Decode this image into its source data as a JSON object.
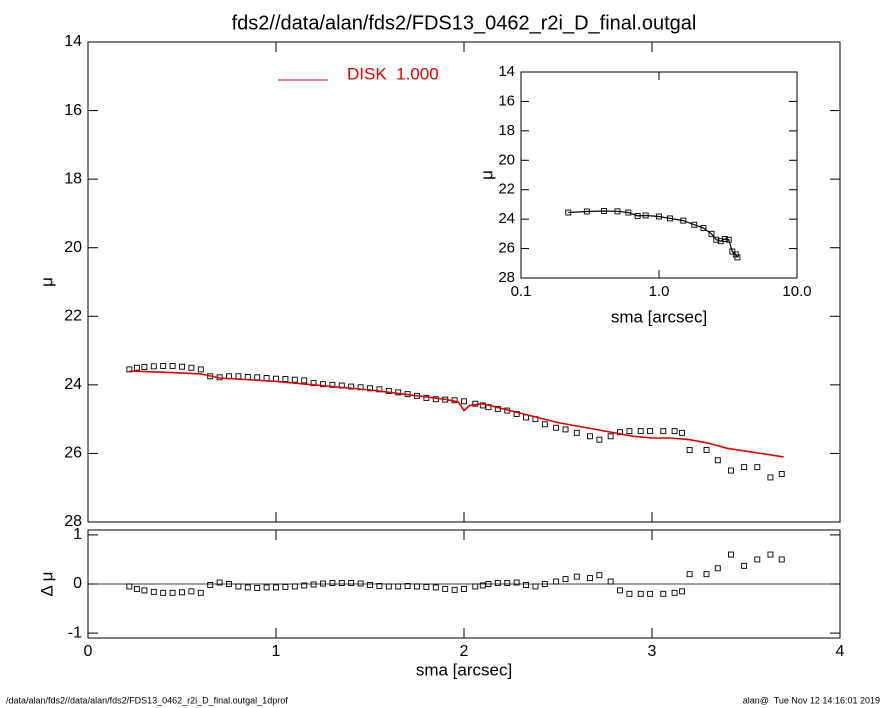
{
  "chart_data": [
    {
      "type": "scatter-line",
      "title": "fds2//data/alan/fds2/FDS13_0462_r2i_D_final.outgal",
      "ylabel": "μ",
      "xlim": [
        0,
        4
      ],
      "xticks": [
        0,
        1,
        2,
        3,
        4
      ],
      "ylim": [
        28,
        14
      ],
      "yticks": [
        14,
        16,
        18,
        20,
        22,
        24,
        26,
        28
      ],
      "series": [
        {
          "kind": "points",
          "color": "#000000",
          "x": [
            0.22,
            0.26,
            0.3,
            0.35,
            0.4,
            0.45,
            0.5,
            0.55,
            0.6,
            0.65,
            0.7,
            0.75,
            0.8,
            0.85,
            0.9,
            0.95,
            1.0,
            1.05,
            1.1,
            1.15,
            1.2,
            1.25,
            1.3,
            1.35,
            1.4,
            1.45,
            1.5,
            1.55,
            1.6,
            1.65,
            1.7,
            1.75,
            1.8,
            1.85,
            1.9,
            1.95,
            2.0,
            2.06,
            2.1,
            2.13,
            2.18,
            2.23,
            2.28,
            2.33,
            2.38,
            2.43,
            2.49,
            2.54,
            2.6,
            2.67,
            2.72,
            2.78,
            2.83,
            2.88,
            2.94,
            2.99,
            3.06,
            3.12,
            3.16,
            3.2,
            3.29,
            3.35,
            3.42,
            3.49,
            3.56,
            3.63,
            3.69
          ],
          "values": [
            23.55,
            23.5,
            23.48,
            23.46,
            23.45,
            23.45,
            23.47,
            23.5,
            23.55,
            23.75,
            23.78,
            23.75,
            23.75,
            23.77,
            23.78,
            23.8,
            23.82,
            23.83,
            23.85,
            23.87,
            23.95,
            23.98,
            24.0,
            24.02,
            24.05,
            24.07,
            24.1,
            24.13,
            24.18,
            24.22,
            24.27,
            24.32,
            24.38,
            24.42,
            24.43,
            24.45,
            24.48,
            24.55,
            24.6,
            24.65,
            24.7,
            24.75,
            24.85,
            24.95,
            25.0,
            25.15,
            25.25,
            25.3,
            25.4,
            25.5,
            25.6,
            25.5,
            25.38,
            25.35,
            25.35,
            25.35,
            25.35,
            25.35,
            25.4,
            25.9,
            25.9,
            26.2,
            26.5,
            26.4,
            26.4,
            26.7,
            26.6
          ]
        },
        {
          "kind": "line",
          "name": "DISK  1.000",
          "color": "#e00000",
          "x": [
            0.22,
            0.4,
            0.6,
            0.7,
            1.0,
            1.5,
            1.9,
            1.97,
            2.0,
            2.03,
            2.1,
            2.5,
            2.7,
            2.9,
            3.0,
            3.1,
            3.2,
            3.3,
            3.4,
            3.7
          ],
          "values": [
            23.6,
            23.63,
            23.68,
            23.8,
            23.9,
            24.15,
            24.42,
            24.5,
            24.75,
            24.6,
            24.55,
            25.1,
            25.3,
            25.5,
            25.55,
            25.55,
            25.6,
            25.7,
            25.85,
            26.1
          ]
        }
      ]
    },
    {
      "type": "scatter-line",
      "xlabel": "sma [arcsec]",
      "ylabel": "Δ μ",
      "xlim": [
        0,
        4
      ],
      "xticks": [
        0,
        1,
        2,
        3,
        4
      ],
      "ylim": [
        -1.1,
        1.1
      ],
      "yticks": [
        -1,
        0,
        1
      ],
      "reference_line": 0,
      "series": [
        {
          "kind": "points",
          "color": "#000000",
          "x": [
            0.22,
            0.26,
            0.3,
            0.35,
            0.4,
            0.45,
            0.5,
            0.55,
            0.6,
            0.65,
            0.7,
            0.75,
            0.8,
            0.85,
            0.9,
            0.95,
            1.0,
            1.05,
            1.1,
            1.15,
            1.2,
            1.25,
            1.3,
            1.35,
            1.4,
            1.45,
            1.5,
            1.55,
            1.6,
            1.65,
            1.7,
            1.75,
            1.8,
            1.85,
            1.9,
            1.95,
            2.0,
            2.06,
            2.1,
            2.13,
            2.18,
            2.23,
            2.28,
            2.33,
            2.38,
            2.43,
            2.49,
            2.54,
            2.6,
            2.67,
            2.72,
            2.78,
            2.83,
            2.88,
            2.94,
            2.99,
            3.06,
            3.12,
            3.16,
            3.2,
            3.29,
            3.35,
            3.42,
            3.49,
            3.56,
            3.63,
            3.69
          ],
          "values": [
            -0.05,
            -0.1,
            -0.13,
            -0.16,
            -0.18,
            -0.18,
            -0.17,
            -0.15,
            -0.18,
            -0.02,
            0.03,
            0.0,
            -0.05,
            -0.07,
            -0.08,
            -0.07,
            -0.07,
            -0.06,
            -0.05,
            -0.03,
            -0.01,
            0.01,
            0.02,
            0.02,
            0.02,
            0.01,
            -0.02,
            -0.04,
            -0.05,
            -0.05,
            -0.04,
            -0.05,
            -0.06,
            -0.07,
            -0.1,
            -0.12,
            -0.1,
            -0.05,
            -0.03,
            0.0,
            0.02,
            0.02,
            0.03,
            -0.02,
            -0.05,
            0.0,
            0.05,
            0.1,
            0.15,
            0.12,
            0.18,
            0.05,
            -0.13,
            -0.2,
            -0.2,
            -0.2,
            -0.2,
            -0.18,
            -0.15,
            0.2,
            0.2,
            0.32,
            0.6,
            0.37,
            0.5,
            0.6,
            0.5
          ]
        }
      ]
    },
    {
      "type": "scatter-line",
      "xlabel": "sma [arcsec]",
      "ylabel": "μ",
      "xscale": "log",
      "xlim": [
        0.1,
        10
      ],
      "xticks": [
        0.1,
        {
          "value": 1,
          "label": "1.0"
        },
        {
          "value": 10,
          "label": "10.0"
        }
      ],
      "ylim": [
        28,
        14
      ],
      "yticks": [
        14,
        16,
        18,
        20,
        22,
        24,
        26,
        28
      ],
      "series": [
        {
          "kind": "points-line",
          "color": "#000000",
          "x": [
            0.22,
            0.3,
            0.4,
            0.5,
            0.6,
            0.7,
            0.8,
            1.0,
            1.2,
            1.5,
            1.8,
            2.1,
            2.4,
            2.6,
            2.8,
            3.0,
            3.2,
            3.4,
            3.6,
            3.7
          ],
          "values": [
            23.55,
            23.48,
            23.45,
            23.47,
            23.55,
            23.78,
            23.75,
            23.82,
            23.95,
            24.1,
            24.38,
            24.6,
            25.0,
            25.4,
            25.5,
            25.35,
            25.4,
            26.2,
            26.4,
            26.6
          ]
        }
      ]
    }
  ],
  "footer": {
    "left": "/data/alan/fds2//data/alan/fds2/FDS13_0462_r2i_D_final.outgal_1dprof",
    "right": "alan@  Tue Nov 12 14:16:01 2019"
  }
}
